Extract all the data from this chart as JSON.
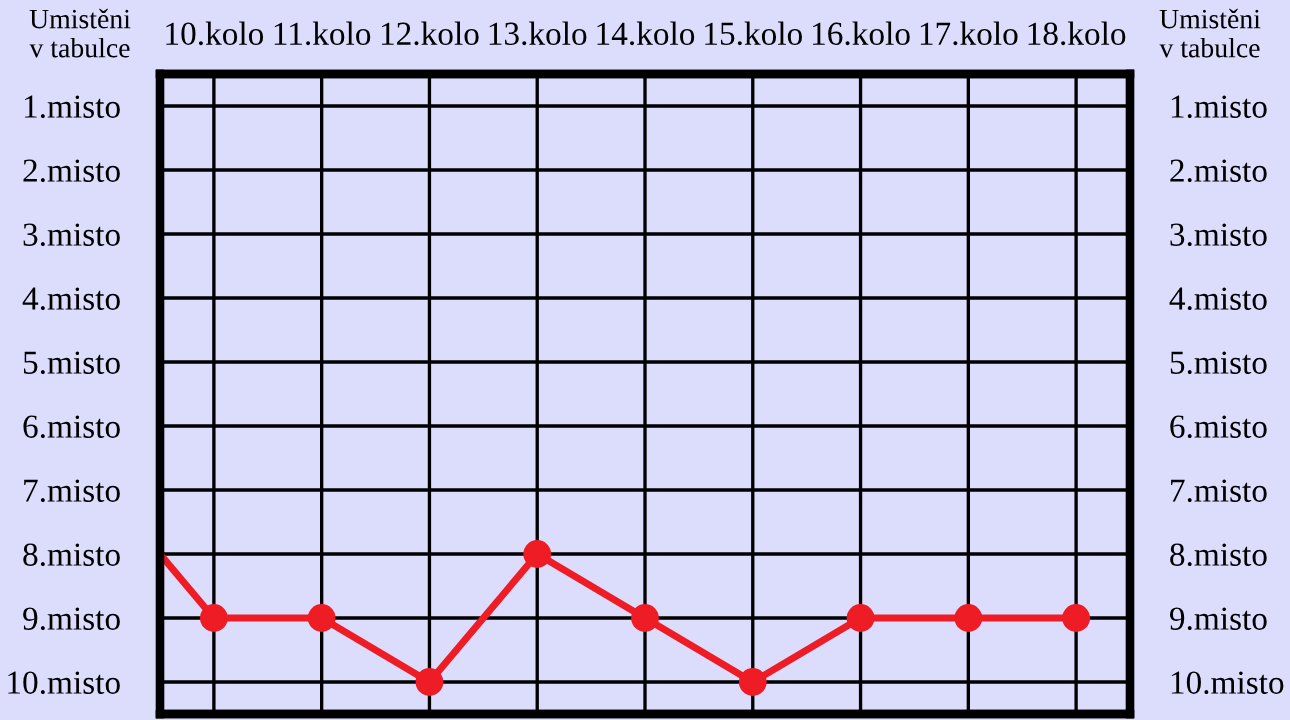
{
  "chart_data": {
    "type": "line",
    "ylabel": "Umistěni\nv tabulce",
    "y2label": "Umistěni\nv tabulce",
    "x": [
      10,
      11,
      12,
      13,
      14,
      15,
      16,
      17,
      18
    ],
    "xlim": [
      9.5,
      18.5
    ],
    "xticks": [
      {
        "value": 10,
        "label": "10.kolo"
      },
      {
        "value": 11,
        "label": "11.kolo"
      },
      {
        "value": 12,
        "label": "12.kolo"
      },
      {
        "value": 13,
        "label": "13.kolo"
      },
      {
        "value": 14,
        "label": "14.kolo"
      },
      {
        "value": 15,
        "label": "15.kolo"
      },
      {
        "value": 16,
        "label": "16.kolo"
      },
      {
        "value": 17,
        "label": "17.kolo"
      },
      {
        "value": 18,
        "label": "18.kolo"
      }
    ],
    "ylim": [
      10.5,
      0.5
    ],
    "yticks": [
      {
        "value": 1,
        "label": "1.misto"
      },
      {
        "value": 2,
        "label": "2.misto"
      },
      {
        "value": 3,
        "label": "3.misto"
      },
      {
        "value": 4,
        "label": "4.misto"
      },
      {
        "value": 5,
        "label": "5.misto"
      },
      {
        "value": 6,
        "label": "6.misto"
      },
      {
        "value": 7,
        "label": "7.misto"
      },
      {
        "value": 8,
        "label": "8.misto"
      },
      {
        "value": 9,
        "label": "9.misto"
      },
      {
        "value": 10,
        "label": "10.misto"
      }
    ],
    "y2lim": [
      10.5,
      0.5
    ],
    "y2ticks": [
      {
        "value": 1,
        "label": "1.misto"
      },
      {
        "value": 2,
        "label": "2.misto"
      },
      {
        "value": 3,
        "label": "3.misto"
      },
      {
        "value": 4,
        "label": "4.misto"
      },
      {
        "value": 5,
        "label": "5.misto"
      },
      {
        "value": 6,
        "label": "6.misto"
      },
      {
        "value": 7,
        "label": "7.misto"
      },
      {
        "value": 8,
        "label": "8.misto"
      },
      {
        "value": 9,
        "label": "9.misto"
      },
      {
        "value": 10,
        "label": "10.misto"
      }
    ],
    "series": [
      {
        "color": "#ee1c24",
        "x": [
          9.5,
          10
        ],
        "values": [
          8,
          9
        ]
      },
      {
        "color": "#ee1c24",
        "values": [
          9,
          9,
          10,
          8,
          9,
          10,
          9,
          9,
          9
        ],
        "marker": "circle"
      }
    ],
    "grid": true,
    "line_style": "solid"
  }
}
